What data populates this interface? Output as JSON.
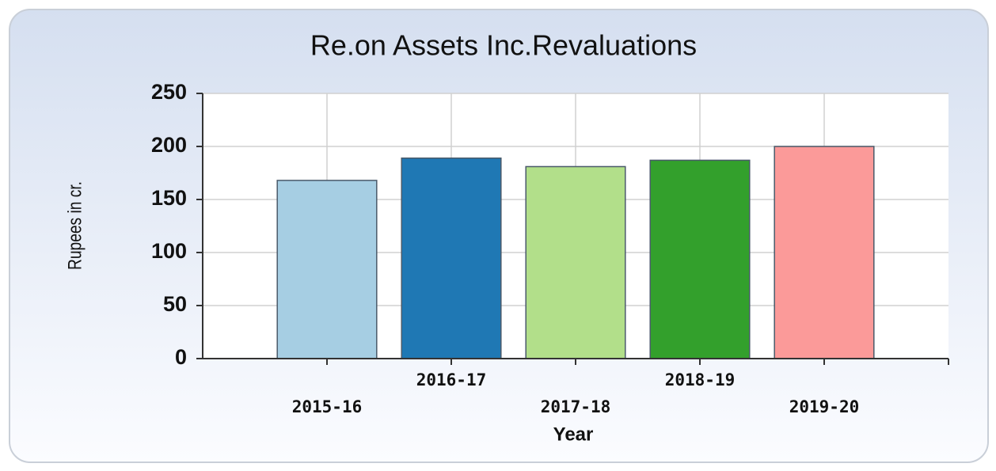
{
  "chart_data": {
    "type": "bar",
    "title": "Re.on Assets Inc.Revaluations",
    "categories": [
      "2015-16",
      "2016-17",
      "2017-18",
      "2018-19",
      "2019-20"
    ],
    "series": [
      {
        "name": "Re.on Assets Inc.Revaluations",
        "values": [
          168,
          189,
          181,
          187,
          200
        ]
      }
    ],
    "colors": [
      "#a6cee3",
      "#1f78b4",
      "#b2df8a",
      "#33a02c",
      "#fb9a99"
    ],
    "x_label": "Year",
    "y_label": "Rupees in cr.",
    "ylim": [
      0,
      250
    ],
    "yticks": [
      0,
      50,
      100,
      150,
      200,
      250
    ],
    "grid": true
  }
}
